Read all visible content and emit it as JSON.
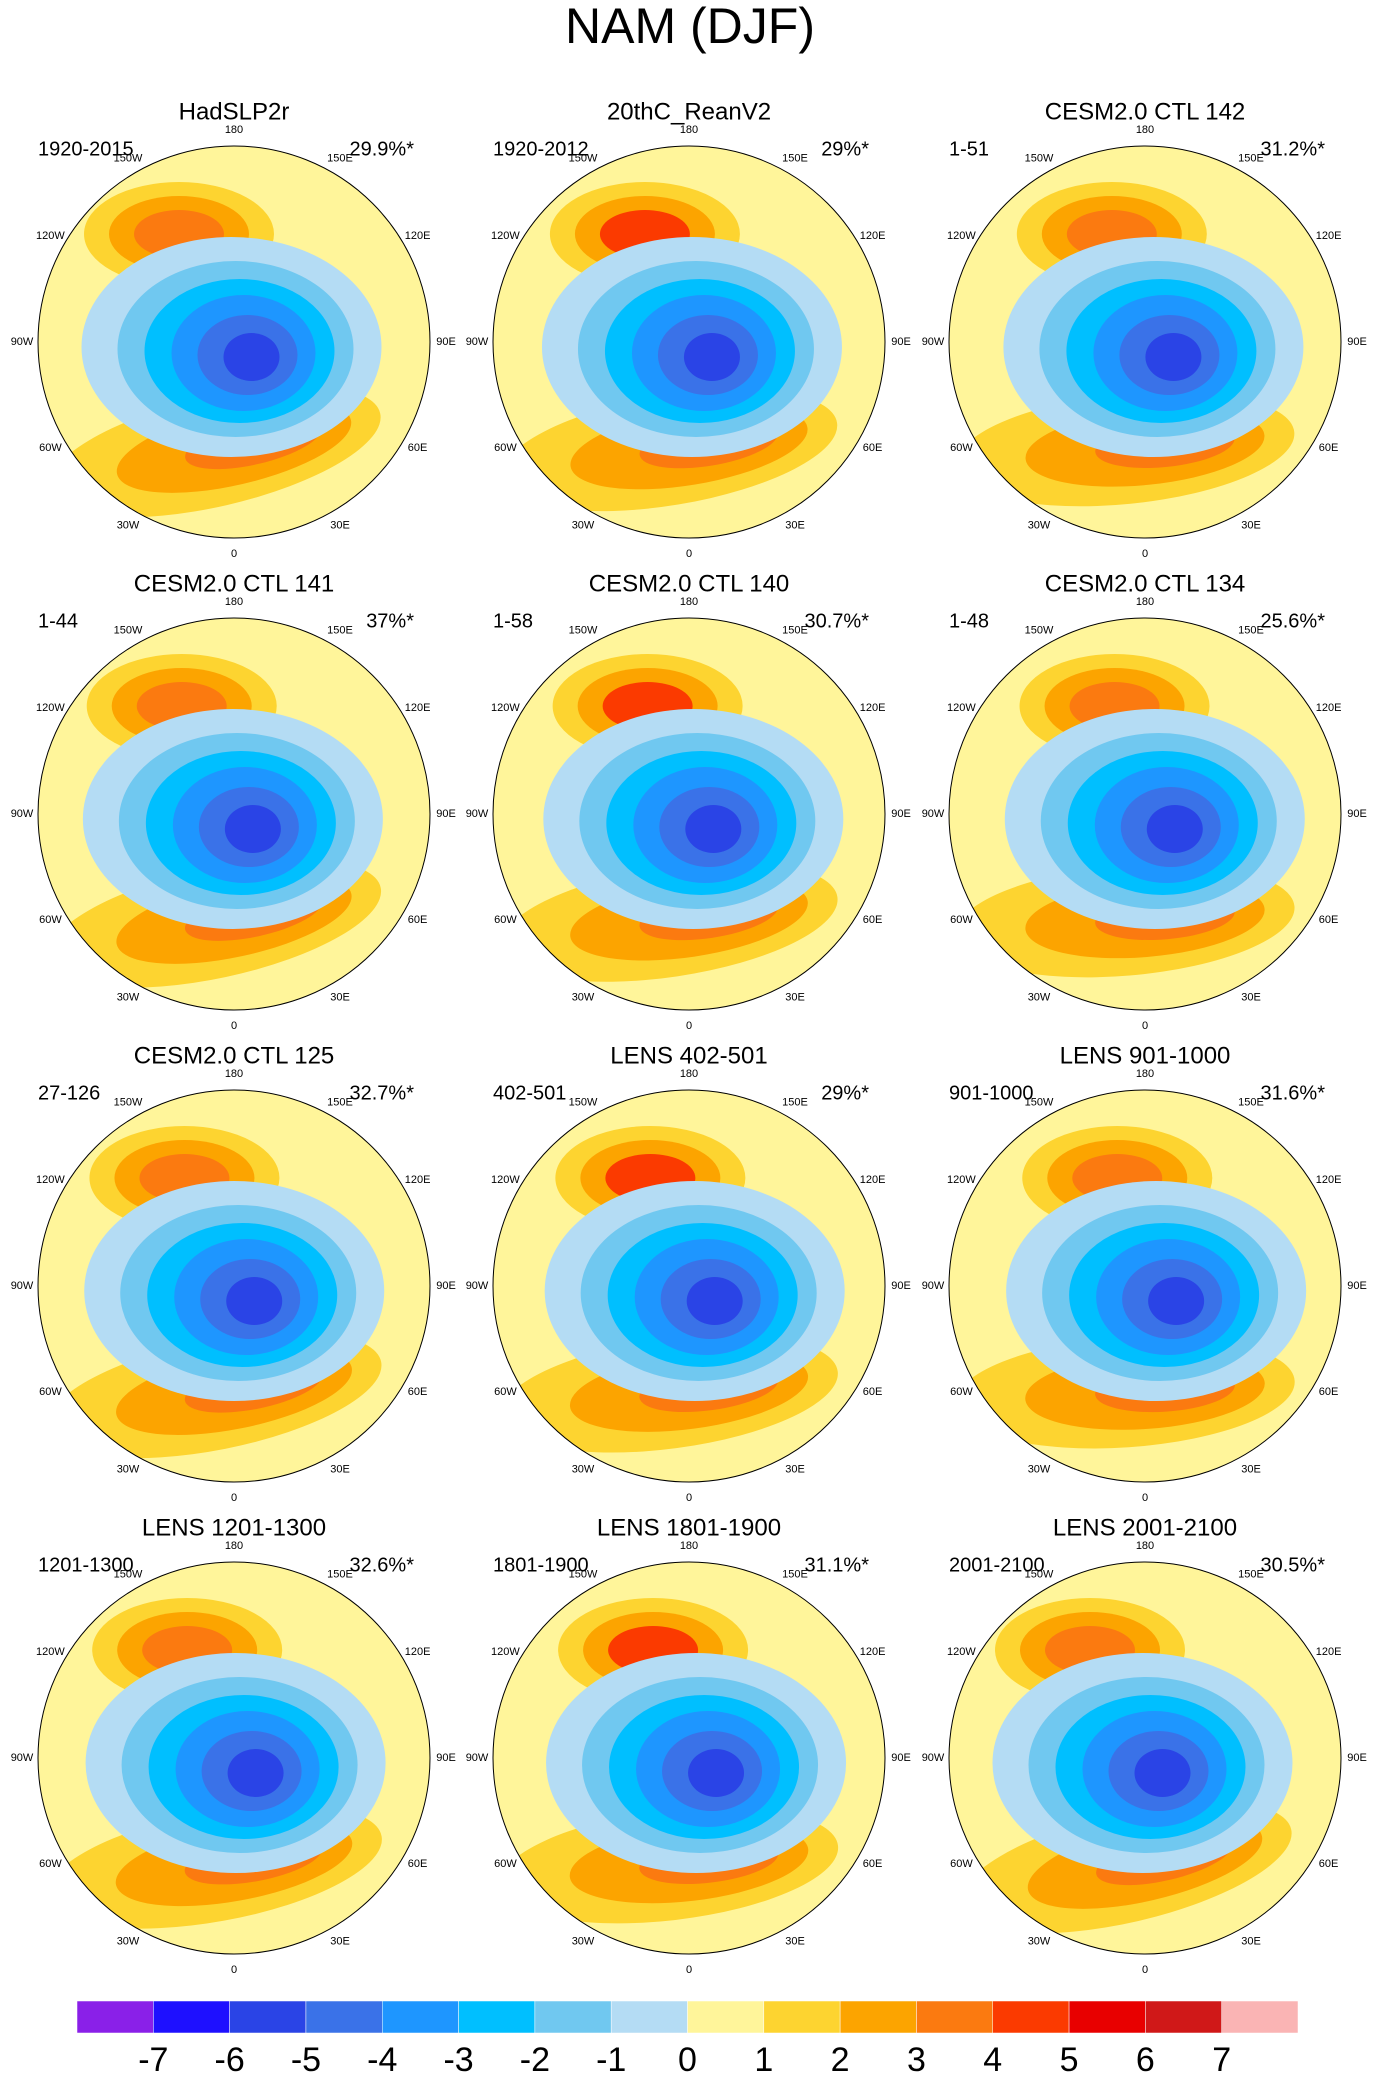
{
  "title": "NAM (DJF)",
  "panels": [
    {
      "title": "HadSLP2r",
      "period": "1920-2015",
      "variance": "29.9%*"
    },
    {
      "title": "20thC_ReanV2",
      "period": "1920-2012",
      "variance": "29%*"
    },
    {
      "title": "CESM2.0 CTL 142",
      "period": "1-51",
      "variance": "31.2%*"
    },
    {
      "title": "CESM2.0 CTL 141",
      "period": "1-44",
      "variance": "37%*"
    },
    {
      "title": "CESM2.0 CTL 140",
      "period": "1-58",
      "variance": "30.7%*"
    },
    {
      "title": "CESM2.0 CTL 134",
      "period": "1-48",
      "variance": "25.6%*"
    },
    {
      "title": "CESM2.0 CTL 125",
      "period": "27-126",
      "variance": "32.7%*"
    },
    {
      "title": "LENS 402-501",
      "period": "402-501",
      "variance": "29%*"
    },
    {
      "title": "LENS 901-1000",
      "period": "901-1000",
      "variance": "31.6%*"
    },
    {
      "title": "LENS 1201-1300",
      "period": "1201-1300",
      "variance": "32.6%*"
    },
    {
      "title": "LENS 1801-1900",
      "period": "1801-1900",
      "variance": "31.1%*"
    },
    {
      "title": "LENS 2001-2100",
      "period": "2001-2100",
      "variance": "30.5%*"
    }
  ],
  "lon_labels": [
    "180",
    "150E",
    "120E",
    "90E",
    "60E",
    "30E",
    "0",
    "30W",
    "60W",
    "90W",
    "120W",
    "150W"
  ],
  "colorbar": {
    "colors": [
      "#8a20e8",
      "#1e10ff",
      "#2a44e6",
      "#3a72e8",
      "#1e96ff",
      "#00bfff",
      "#70c8f0",
      "#b4dcf4",
      "#fff59a",
      "#fdd430",
      "#fca400",
      "#fb7a10",
      "#fb3a00",
      "#e80000",
      "#d01818",
      "#fab4b4"
    ],
    "labels": [
      -7,
      -6,
      -5,
      -4,
      -3,
      -2,
      -1,
      0,
      1,
      2,
      3,
      4,
      5,
      6,
      7
    ]
  }
}
